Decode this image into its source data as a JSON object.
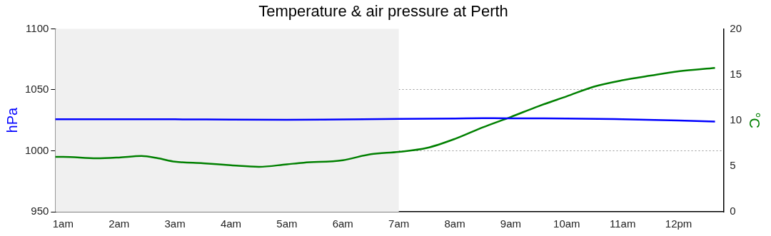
{
  "chart_data": {
    "type": "line",
    "title": "Temperature & air pressure at Perth",
    "ylabel": "hPa",
    "y2label": "°C",
    "xlim": [
      0.86,
      12.8
    ],
    "xticks": [
      {
        "value": 1,
        "label": "1am"
      },
      {
        "value": 2,
        "label": "2am"
      },
      {
        "value": 3,
        "label": "3am"
      },
      {
        "value": 4,
        "label": "4am"
      },
      {
        "value": 5,
        "label": "5am"
      },
      {
        "value": 6,
        "label": "6am"
      },
      {
        "value": 7,
        "label": "7am"
      },
      {
        "value": 8,
        "label": "8am"
      },
      {
        "value": 9,
        "label": "9am"
      },
      {
        "value": 10,
        "label": "10am"
      },
      {
        "value": 11,
        "label": "11am"
      },
      {
        "value": 12,
        "label": "12pm"
      }
    ],
    "ylim": [
      950,
      1100
    ],
    "yticks": [
      950,
      1000,
      1050,
      1100
    ],
    "y2lim": [
      0,
      20
    ],
    "y2ticks": [
      0,
      5,
      10,
      15,
      20
    ],
    "series": [
      {
        "color": "#0000ff",
        "x": [
          0.86,
          2,
          3,
          4,
          5,
          6,
          7,
          8,
          8.5,
          9,
          10,
          11,
          12,
          12.65
        ],
        "values": [
          1025.8,
          1025.8,
          1025.8,
          1025.5,
          1025.4,
          1025.7,
          1026.1,
          1026.5,
          1026.7,
          1026.6,
          1026.5,
          1025.8,
          1024.8,
          1023.9
        ]
      },
      {
        "color": "#008000",
        "axis": "y2",
        "x": [
          0.86,
          1,
          1.6,
          2,
          2.4,
          2.7,
          3,
          3.5,
          4,
          4.5,
          5,
          5.3,
          6,
          6.5,
          7,
          7.5,
          8,
          8.5,
          9,
          9.5,
          10,
          10.5,
          11,
          11.5,
          12,
          12.65
        ],
        "values": [
          6.0,
          6.0,
          5.84,
          5.93,
          6.09,
          5.84,
          5.48,
          5.3,
          5.08,
          4.91,
          5.19,
          5.36,
          5.64,
          6.3,
          6.55,
          6.97,
          7.96,
          9.23,
          10.36,
          11.55,
          12.62,
          13.7,
          14.38,
          14.89,
          15.36,
          15.73
        ]
      }
    ],
    "bands": [
      {
        "axis": "x",
        "from": 0.86,
        "to": 7,
        "color": "#f0f0f0"
      }
    ],
    "grid": "y",
    "legend": false,
    "marker": "none",
    "line_style": "solid"
  }
}
